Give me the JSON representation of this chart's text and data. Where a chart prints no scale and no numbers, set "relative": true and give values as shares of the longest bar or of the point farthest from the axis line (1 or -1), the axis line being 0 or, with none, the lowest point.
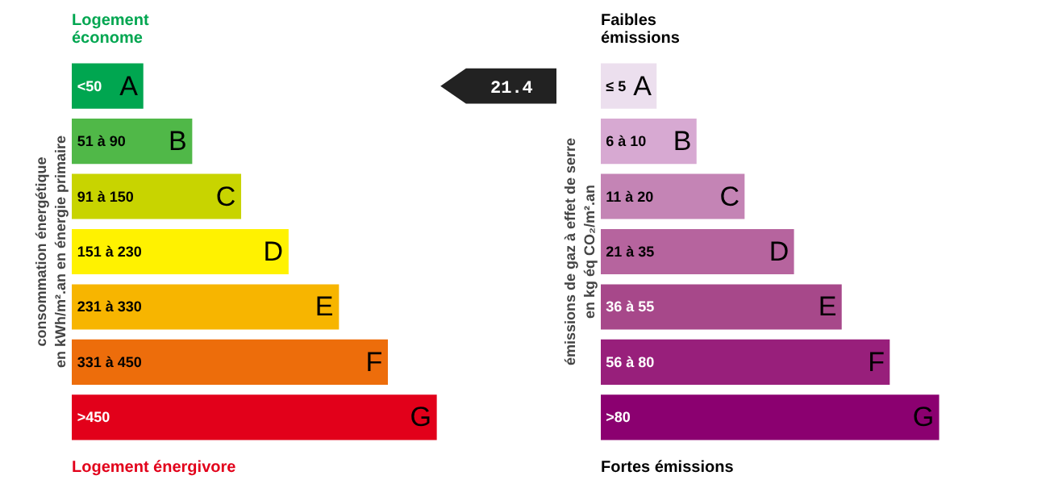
{
  "chart_data": [
    {
      "type": "bar",
      "orientation": "horizontal",
      "relative": true,
      "title": "Logement\néconome",
      "ylabel": "consommation énergétique\nen kWh/m².an en énergie primaire",
      "categories": [
        "A",
        "B",
        "C",
        "D",
        "E",
        "F",
        "G"
      ],
      "values": [
        0.196,
        0.33,
        0.464,
        0.594,
        0.732,
        0.866,
        1
      ],
      "colors": [
        "#00a650",
        "#50b848",
        "#c8d400",
        "#fff200",
        "#f7b500",
        "#ed6d0b",
        "#e2001a"
      ],
      "annotations": [
        "<50",
        "51 à 90",
        "91 à 150",
        "151 à 230",
        "231 à 330",
        "331 à 450",
        ">450",
        "21.4",
        "Logement énergivore"
      ]
    },
    {
      "type": "bar",
      "orientation": "horizontal",
      "relative": true,
      "title": "Faibles\némissions",
      "ylabel": "émissions de gaz à effet de serre\nen kg éq CO₂/m².an",
      "categories": [
        "A",
        "B",
        "C",
        "D",
        "E",
        "F",
        "G"
      ],
      "values": [
        0.165,
        0.283,
        0.425,
        0.571,
        0.712,
        0.854,
        1
      ],
      "colors": [
        "#ecdfee",
        "#d7a9d2",
        "#c484b5",
        "#b6649e",
        "#a7488a",
        "#981f7b",
        "#8b0070"
      ],
      "annotations": [
        "≤ 5",
        "6 à 10",
        "11 à 20",
        "21 à 35",
        "36 à 55",
        "56 à 80",
        ">80",
        "Fortes émissions"
      ]
    }
  ]
}
